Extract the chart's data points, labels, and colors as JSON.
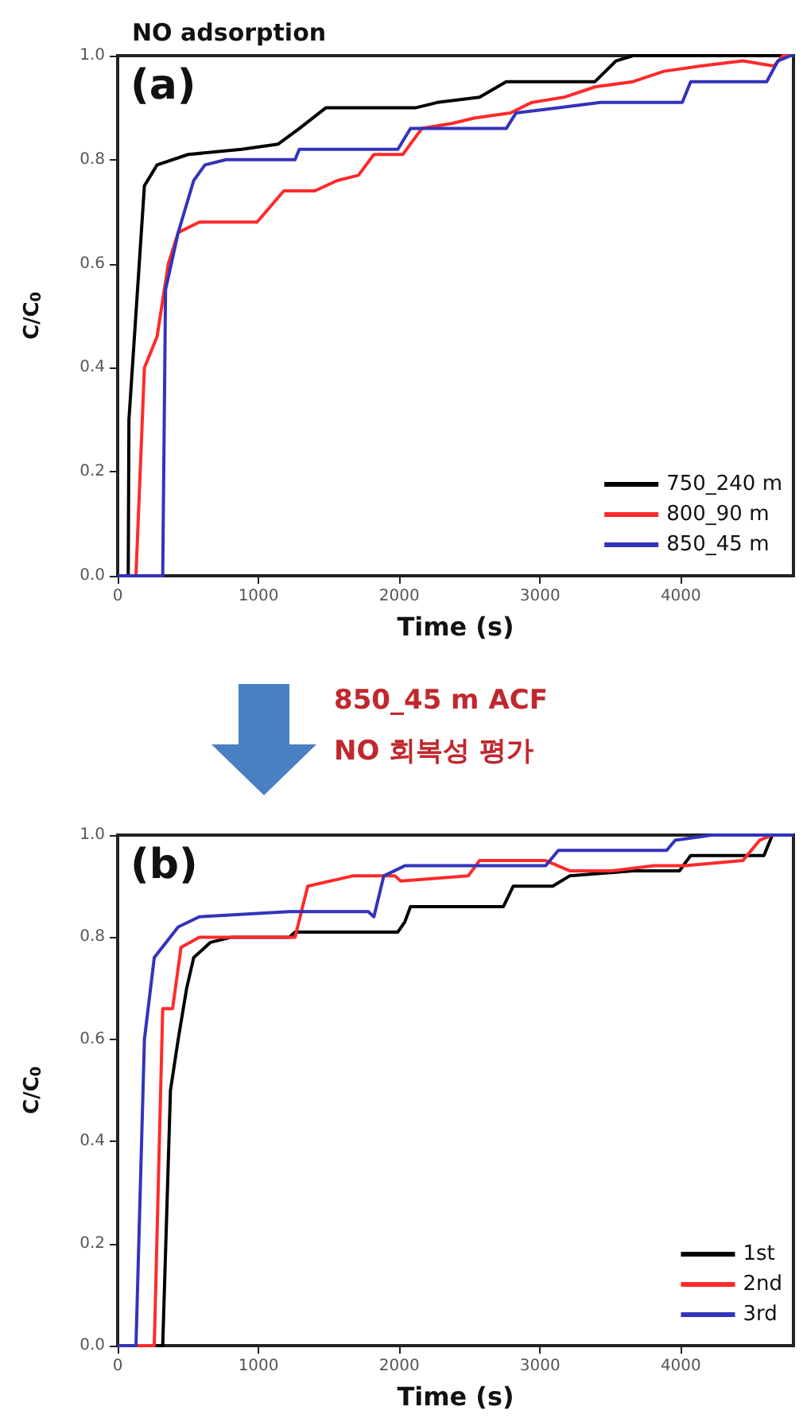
{
  "chart_data": [
    {
      "type": "line",
      "title": "NO adsorption",
      "xlabel": "Time (s)",
      "ylabel": "C/C$_{0}$",
      "annotations": [
        "(a)"
      ],
      "xlim": [
        0,
        4800
      ],
      "xticks": [
        0,
        1000,
        2000,
        3000,
        4000
      ],
      "ylim": [
        0,
        1
      ],
      "yticks": [
        {
          "value": 0,
          "label": "0.0"
        },
        {
          "value": 0.2,
          "label": "0.2"
        },
        {
          "value": 0.4,
          "label": "0.4"
        },
        {
          "value": 0.6,
          "label": "0.6"
        },
        {
          "value": 0.8,
          "label": "0.8"
        },
        {
          "value": 1,
          "label": "1.0"
        }
      ],
      "grid": false,
      "legend": "bottom right",
      "marker": "none",
      "series": [
        {
          "name": "750_240 m",
          "color": "#000000",
          "x": [
            0,
            75,
            80,
            190,
            280,
            500,
            880,
            1140,
            1290,
            1480,
            2120,
            2270,
            2570,
            2760,
            3390,
            3540,
            3660,
            4800
          ],
          "values": [
            0,
            0,
            0.3,
            0.75,
            0.79,
            0.81,
            0.82,
            0.83,
            0.86,
            0.9,
            0.9,
            0.91,
            0.92,
            0.95,
            0.95,
            0.99,
            1,
            1
          ]
        },
        {
          "name": "800_90 m",
          "color": "#ff2a2a",
          "x": [
            0,
            130,
            190,
            280,
            360,
            430,
            580,
            990,
            1180,
            1400,
            1560,
            1710,
            1820,
            2025,
            2160,
            2380,
            2530,
            2790,
            2940,
            3170,
            3390,
            3660,
            3880,
            4140,
            4440,
            4660,
            4725,
            4800
          ],
          "values": [
            0,
            0,
            0.4,
            0.46,
            0.6,
            0.66,
            0.68,
            0.68,
            0.74,
            0.74,
            0.76,
            0.77,
            0.81,
            0.81,
            0.86,
            0.87,
            0.88,
            0.89,
            0.91,
            0.92,
            0.94,
            0.95,
            0.97,
            0.98,
            0.99,
            0.98,
            1,
            1
          ]
        },
        {
          "name": "850_45 m",
          "color": "#3333bb",
          "x": [
            0,
            320,
            340,
            430,
            540,
            620,
            770,
            1260,
            1290,
            1990,
            2080,
            2760,
            2830,
            3130,
            3430,
            4010,
            4070,
            4610,
            4690,
            4780,
            4800
          ],
          "values": [
            0,
            0,
            0.55,
            0.66,
            0.76,
            0.79,
            0.8,
            0.8,
            0.82,
            0.82,
            0.86,
            0.86,
            0.89,
            0.9,
            0.91,
            0.91,
            0.95,
            0.95,
            0.99,
            1,
            1
          ]
        }
      ]
    },
    {
      "type": "line",
      "xlabel": "Time (s)",
      "ylabel": "C/C$_{0}$",
      "annotations": [
        "(b)",
        "850_45 m ACF",
        "NO 회복성 평가"
      ],
      "xlim": [
        0,
        4800
      ],
      "xticks": [
        0,
        1000,
        2000,
        3000,
        4000
      ],
      "ylim": [
        0,
        1
      ],
      "yticks": [
        {
          "value": 0,
          "label": "0.0"
        },
        {
          "value": 0.2,
          "label": "0.2"
        },
        {
          "value": 0.4,
          "label": "0.4"
        },
        {
          "value": 0.6,
          "label": "0.6"
        },
        {
          "value": 0.8,
          "label": "0.8"
        },
        {
          "value": 1,
          "label": "1.0"
        }
      ],
      "grid": false,
      "legend": "bottom right",
      "marker": "none",
      "series": [
        {
          "name": "1st",
          "color": "#000000",
          "x": [
            0,
            320,
            375,
            430,
            490,
            540,
            660,
            810,
            1220,
            1260,
            1990,
            2040,
            2080,
            2740,
            2810,
            3090,
            3210,
            3660,
            3990,
            4070,
            4590,
            4650,
            4800
          ],
          "values": [
            0,
            0,
            0.5,
            0.6,
            0.7,
            0.76,
            0.79,
            0.8,
            0.8,
            0.81,
            0.81,
            0.83,
            0.86,
            0.86,
            0.9,
            0.9,
            0.92,
            0.93,
            0.93,
            0.96,
            0.96,
            1,
            1
          ]
        },
        {
          "name": "2nd",
          "color": "#ff2a2a",
          "x": [
            0,
            260,
            320,
            390,
            450,
            580,
            1260,
            1350,
            1670,
            1970,
            2010,
            2490,
            2570,
            3040,
            3210,
            3510,
            3810,
            4030,
            4440,
            4560,
            4650
          ],
          "values": [
            0,
            0,
            0.66,
            0.66,
            0.78,
            0.8,
            0.8,
            0.9,
            0.92,
            0.92,
            0.91,
            0.92,
            0.95,
            0.95,
            0.93,
            0.93,
            0.94,
            0.94,
            0.95,
            0.99,
            1
          ]
        },
        {
          "name": "3rd",
          "color": "#3333bb",
          "x": [
            0,
            130,
            190,
            260,
            430,
            580,
            1220,
            1780,
            1820,
            1890,
            2040,
            3040,
            3130,
            3900,
            3960,
            4220,
            4800
          ],
          "values": [
            0,
            0,
            0.6,
            0.76,
            0.82,
            0.84,
            0.85,
            0.85,
            0.84,
            0.92,
            0.94,
            0.94,
            0.97,
            0.97,
            0.99,
            1,
            1
          ]
        }
      ]
    }
  ]
}
